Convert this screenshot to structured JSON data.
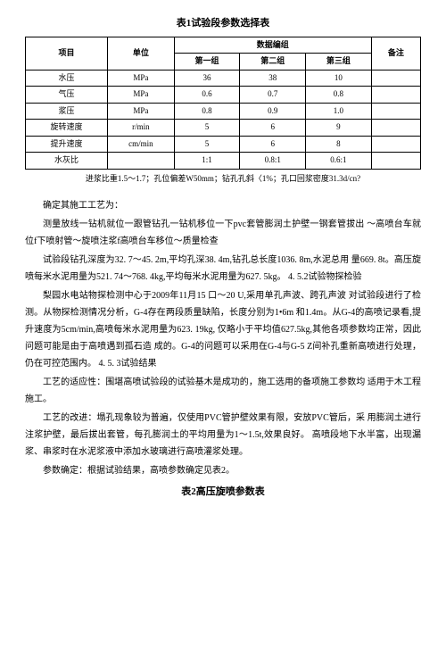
{
  "table1": {
    "title": "表1试验段参数选择表",
    "header_row1": {
      "col1": "项目",
      "col2": "单位",
      "col3": "数据编组",
      "col4": "备注"
    },
    "header_row2": {
      "col1": "第一组",
      "col2": "第二组",
      "col3": "第三组"
    },
    "rows": [
      {
        "item": "水压",
        "unit": "MPa",
        "v1": "36",
        "v2": "38",
        "v3": "10",
        "remark": ""
      },
      {
        "item": "气压",
        "unit": "MPa",
        "v1": "0.6",
        "v2": "0.7",
        "v3": "0.8",
        "remark": ""
      },
      {
        "item": "浆压",
        "unit": "MPa",
        "v1": "0.8",
        "v2": "0.9",
        "v3": "1.0",
        "remark": ""
      },
      {
        "item": "旋转速度",
        "unit": "r/min",
        "v1": "5",
        "v2": "6",
        "v3": "9",
        "remark": ""
      },
      {
        "item": "提升速度",
        "unit": "cm/min",
        "v1": "5",
        "v2": "6",
        "v3": "8",
        "remark": ""
      },
      {
        "item": "水灰比",
        "unit": "",
        "v1": "1:1",
        "v2": "0.8:1",
        "v3": "0.6:1",
        "remark": ""
      }
    ],
    "note": "进浆比重1.5～1.7；孔位偏差W50mm；钻孔孔斜〈1%；孔口回浆密度31.3d/cn?"
  },
  "paragraphs": {
    "p1": "确定其施工工艺为：",
    "p2": "测量放线一钻机就位一跟管钻孔一钻机移位一下pvc套管膨润土护壁一钢套管拔出 ～高喷台车就位f下喷射管～旋喷注浆f高喷台车移位～质量检查",
    "p3": "试验段钻孔深度为32. 7～45. 2m,平均孔深38. 4m,钻孔总长度1036. 8m,水泥总用  量669. 8t。高压旋喷每米水泥用量为521. 74～768. 4kg,平均每米水泥用量为627. 5kg。 4. 5.2试验物探检验",
    "p4": "梨园水电站物探检测中心于2009年11月15 口～20 U,采用单孔声波、跨孔声波 对试验段进行了检测。从物探检测情况分析，G-4存在两段质量缺陷，长度分别为1•6m 和1.4m。从G-4的高喷记录看,提升速度为5cm/min,高喷每米水泥用量为623. 19kg, 仅略小于平均值627.5kg,其他各项参数均正常，因此问题可能是由于高喷遇到孤石造  成的。G-4的问题可以采用在G-4与G-5 Z间补孔重新高喷进行处理，仍在可控范围内。 4. 5. 3试验结果",
    "p5": "工艺的适应性：围堪高喷试验段的试验基木是成功的，施工选用的备项施工参数均  适用于木工程施工。",
    "p6": "工艺的改进：塌孔现象较为普遍，仅使用PVC管护壁效果有限，安放PVC管后，采  用膨润土进行注浆护壁，最后拔出套管，每孔膨润土的平均用量为1～1.5t,效果良好。 高喷段地下水半富，出现漏浆、串浆时在水泥浆液中添加水玻璃进行高喷灌浆处理。",
    "p7": "参数确定：根据试验结果，高喷参数确定见表2。"
  },
  "table2": {
    "title": "表2高压旋喷参数表"
  }
}
